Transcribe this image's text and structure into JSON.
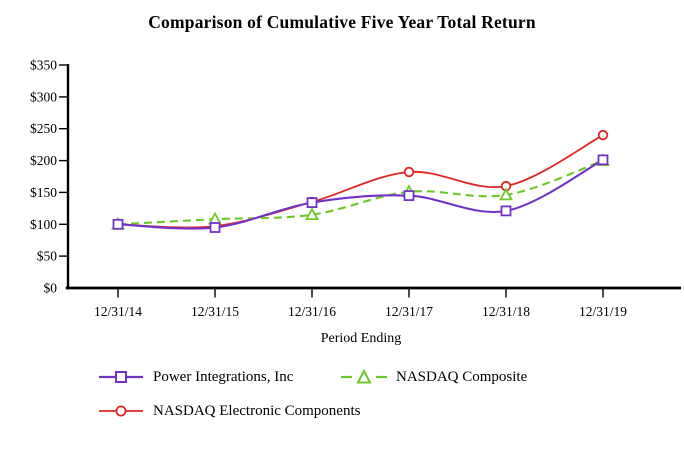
{
  "chart_data": {
    "type": "line",
    "title": "Comparison of Cumulative Five Year Total Return",
    "xlabel": "Period Ending",
    "ylabel": "",
    "categories": [
      "12/31/14",
      "12/31/15",
      "12/31/16",
      "12/31/17",
      "12/31/18",
      "12/31/19"
    ],
    "series": [
      {
        "name": "Power Integrations, Inc",
        "color": "#7232C8",
        "line_style": "solid",
        "marker": "square",
        "values": [
          100,
          95,
          134,
          145,
          121,
          201
        ]
      },
      {
        "name": "NASDAQ Composite",
        "color": "#6EC828",
        "line_style": "dashed",
        "marker": "triangle",
        "values": [
          100,
          108,
          115,
          151,
          146,
          200
        ]
      },
      {
        "name": "NASDAQ Electronic Components",
        "color": "#E12525",
        "line_style": "solid",
        "marker": "circle",
        "values": [
          100,
          97,
          135,
          182,
          160,
          240
        ]
      }
    ],
    "ylim": [
      0,
      350
    ],
    "ytick_values": [
      0,
      50,
      100,
      150,
      200,
      250,
      300,
      350
    ],
    "ytick_labels": [
      "$0",
      "$50",
      "$100",
      "$150",
      "$200",
      "$250",
      "$300",
      "$350"
    ],
    "grid": false,
    "legend_position": "bottom"
  }
}
